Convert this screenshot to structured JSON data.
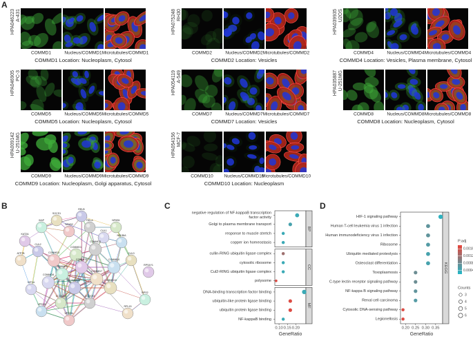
{
  "panel_a": {
    "label": "A",
    "groups": [
      {
        "antibody": "HPA046223",
        "cell_line": "A-431",
        "captions": [
          "COMMD1",
          "Nucleus/COMMD1",
          "Microtubules/COMMD1"
        ],
        "location": "COMMD1 Location: Nucleoplasm, Cytosol"
      },
      {
        "antibody": "HPA075248",
        "cell_line": "RH30",
        "captions": [
          "COMMD2",
          "Nucleus/COMMD2",
          "Microtubules/COMMD2"
        ],
        "location": "COMMD2 Location: Vesicles"
      },
      {
        "antibody": "HPA039935",
        "cell_line": "U2OS",
        "captions": [
          "COMMD4",
          "Nucleus/COMMD4",
          "Microtubules/COMMD4"
        ],
        "location": "COMMD4 Location: Vesicles, Plasma membrane, Cytosol"
      },
      {
        "antibody": "HPA046905",
        "cell_line": "PC-3",
        "captions": [
          "COMMD5",
          "Nucleus/COMMD5",
          "Microtubules/COMMD5"
        ],
        "location": "COMMD5 Location: Nucleoplasm, Cytosol"
      },
      {
        "antibody": "HPA054119",
        "cell_line": "A-549",
        "captions": [
          "COMMD7",
          "Nucleus/COMMD7",
          "Microtubules/COMMD7"
        ],
        "location": "COMMD7 Location: Vesicles"
      },
      {
        "antibody": "HPA035887",
        "cell_line": "U-251MG",
        "captions": [
          "COMMD8",
          "Nucleus/COMMD8",
          "Microtubules/COMMD8"
        ],
        "location": "COMMD8 Location: Nucleoplasm, Cytosol"
      },
      {
        "antibody": "HPA009142",
        "cell_line": "U-251MG",
        "captions": [
          "COMMD9",
          "Nucleus/COMMD9",
          "Microtubules/COMMD9"
        ],
        "location": "COMMD9 Location: Nucleoplasm, Golgi apparatus, Cytosol"
      },
      {
        "antibody": "HPA054156",
        "cell_line": "MCF-7",
        "captions": [
          "COMMD10",
          "Nucleus/COMMD10",
          "Microtubules/COMMD10"
        ],
        "location": "COMMD10 Location: Nucleoplasm"
      }
    ]
  },
  "panel_b": {
    "label": "B",
    "nodes": [
      "RELB",
      "SOCS1",
      "NFKB1",
      "RELA",
      "NFKB2",
      "NFKBIA",
      "KAT2A",
      "XIAP",
      "ATP7B",
      "CUL1",
      "CUL2",
      "CUL3",
      "COMMD1",
      "COMMD2",
      "COMMD3",
      "COMMD4",
      "COMMD5",
      "COMMD6",
      "COMMD7",
      "COMMD8",
      "COMMD9",
      "COMMD10",
      "CCDC22",
      "CCDC93",
      "VPS35L",
      "VPS29",
      "RPS4Y1",
      "RPS2",
      "RPL15",
      "HIF1A"
    ]
  },
  "chart_data": [
    {
      "type": "dot",
      "label": "C",
      "xlabel": "GeneRatio",
      "xlim": [
        0.075,
        0.26
      ],
      "xticks": [
        {
          "value": 0.1,
          "label": "0.10"
        },
        0.15,
        {
          "value": 0.2,
          "label": "0.20"
        }
      ],
      "color_lim": [
        0.0002,
        0.0018
      ],
      "high_color": "#e8443a",
      "low_color": "#22b8c8",
      "facets": [
        {
          "name": "BP",
          "categories": [
            "negative regulation of NF-kappaB transcription factor activity",
            "Golgi to plasma membrane transport",
            "response to muscle stretch",
            "copper ion homeostasis"
          ],
          "values": [
            0.208,
            0.167,
            0.125,
            0.125
          ],
          "counts": [
            5,
            4,
            3,
            3
          ],
          "padj": [
            0.0004,
            0.0005,
            0.0004,
            0.0004
          ]
        },
        {
          "name": "CC",
          "categories": [
            "cullin-RING ubiquitin ligase complex",
            "cytosolic ribosome",
            "Cul2-RING ubiquitin ligase complex",
            "polysome"
          ],
          "values": [
            0.125,
            0.125,
            0.125,
            0.083
          ],
          "counts": [
            3,
            3,
            3,
            2
          ],
          "padj": [
            0.0012,
            0.0004,
            0.0004,
            0.0017
          ]
        },
        {
          "name": "MF",
          "categories": [
            "DNA-binding transcription factor binding",
            "ubiquitin-like protein ligase binding",
            "ubiquitin protein ligase binding",
            "NF-kappaB binding"
          ],
          "values": [
            0.25,
            0.167,
            0.167,
            0.125
          ],
          "counts": [
            6,
            4,
            4,
            3
          ],
          "padj": [
            0.0004,
            0.0017,
            0.0017,
            0.0004
          ]
        }
      ]
    },
    {
      "type": "dot",
      "label": "D",
      "xlabel": "GeneRatio",
      "xlim": [
        0.175,
        0.385
      ],
      "xticks": [
        {
          "value": 0.2,
          "label": "0.20"
        },
        0.25,
        {
          "value": 0.3,
          "label": "0.30"
        },
        0.35
      ],
      "color_lim": [
        0.0002,
        0.0018
      ],
      "high_color": "#e8443a",
      "low_color": "#22b8c8",
      "facets": [
        {
          "name": "KEGG",
          "categories": [
            "HIF-1 signaling pathway",
            "Human T-cell leukemia virus 1 infection",
            "Human immunodeficiency virus 1 infection",
            "Ribosome",
            "Ubiquitin mediated proteolysis",
            "Osteoclast differentiation",
            "Toxoplasmosis",
            "C-type lectin receptor signaling pathway",
            "NF-kappa B signaling pathway",
            "Renal cell carcinoma",
            "Cytosolic DNA-sensing pathway",
            "Legionellosis"
          ],
          "values": [
            0.375,
            0.3125,
            0.3125,
            0.3125,
            0.3125,
            0.3125,
            0.25,
            0.25,
            0.25,
            0.25,
            0.1875,
            0.1875
          ],
          "counts": [
            6,
            5,
            5,
            5,
            5,
            5,
            4,
            4,
            4,
            4,
            3,
            3
          ],
          "padj": [
            0.0003,
            0.0007,
            0.0007,
            0.0006,
            0.0005,
            0.0005,
            0.0008,
            0.0008,
            0.0007,
            0.0006,
            0.0017,
            0.0017
          ]
        }
      ],
      "legend": {
        "color_title": "P.adj",
        "color_ticks": [
          0.0016,
          0.0012,
          0.0008,
          0.0004
        ],
        "size_title": "Counts",
        "size_ticks": [
          3,
          4,
          5,
          6
        ]
      }
    }
  ]
}
